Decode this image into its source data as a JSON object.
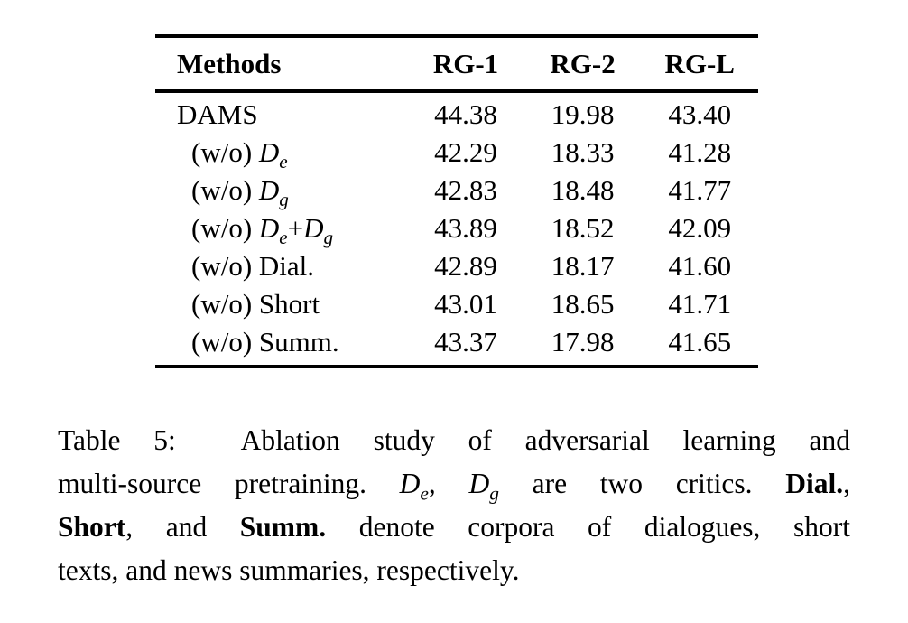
{
  "page": {
    "background_color": "#ffffff",
    "text_color": "#000000"
  },
  "table": {
    "headers": [
      "Methods",
      "RG-1",
      "RG-2",
      "RG-L"
    ],
    "rows": [
      {
        "indent": false,
        "method": [
          {
            "t": "DAMS"
          }
        ],
        "values": [
          "44.38",
          "19.98",
          "43.40"
        ]
      },
      {
        "indent": true,
        "method": [
          {
            "t": "(w/o) "
          },
          {
            "base": "D",
            "sub": "e"
          }
        ],
        "values": [
          "42.29",
          "18.33",
          "41.28"
        ]
      },
      {
        "indent": true,
        "method": [
          {
            "t": "(w/o) "
          },
          {
            "base": "D",
            "sub": "g"
          }
        ],
        "values": [
          "42.83",
          "18.48",
          "41.77"
        ]
      },
      {
        "indent": true,
        "method": [
          {
            "t": "(w/o) "
          },
          {
            "base": "D",
            "sub": "e"
          },
          {
            "t": "+"
          },
          {
            "base": "D",
            "sub": "g"
          }
        ],
        "values": [
          "43.89",
          "18.52",
          "42.09"
        ]
      },
      {
        "indent": true,
        "method": [
          {
            "t": "(w/o) Dial."
          }
        ],
        "values": [
          "42.89",
          "18.17",
          "41.60"
        ]
      },
      {
        "indent": true,
        "method": [
          {
            "t": "(w/o) Short"
          }
        ],
        "values": [
          "43.01",
          "18.65",
          "41.71"
        ]
      },
      {
        "indent": true,
        "method": [
          {
            "t": "(w/o) Summ."
          }
        ],
        "values": [
          "43.37",
          "17.98",
          "41.65"
        ]
      }
    ]
  },
  "caption": {
    "lines": [
      [
        {
          "t": "Table 5:  Ablation study of adversarial learning and"
        }
      ],
      [
        {
          "t": "multi-source pretraining. "
        },
        {
          "base": "D",
          "sub": "e"
        },
        {
          "t": ", "
        },
        {
          "base": "D",
          "sub": "g"
        },
        {
          "t": " are two critics. "
        },
        {
          "t": "Dial.",
          "b": true
        },
        {
          "t": ","
        }
      ],
      [
        {
          "t": "Short",
          "b": true
        },
        {
          "t": ", and "
        },
        {
          "t": "Summ.",
          "b": true
        },
        {
          "t": " denote corpora of dialogues, short"
        }
      ],
      [
        {
          "t": "texts, and news summaries, respectively."
        }
      ]
    ]
  }
}
